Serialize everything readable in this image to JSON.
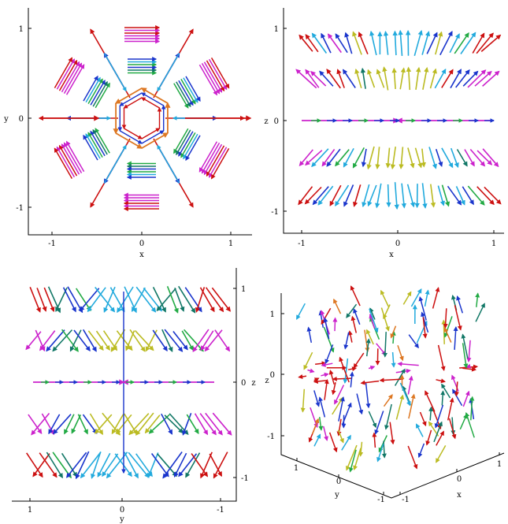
{
  "figure": {
    "panels": [
      {
        "id": "top-left",
        "view": "projection onto x-y plane",
        "xlabel": "x",
        "ylabel": "y",
        "xticks": [
          "-1",
          "0",
          "1"
        ],
        "yticks": [
          "1",
          "0",
          "-1"
        ]
      },
      {
        "id": "top-right",
        "view": "projection onto x-z plane",
        "xlabel": "x",
        "ylabel": "z",
        "xticks": [
          "-1",
          "0",
          "1"
        ],
        "yticks": [
          "1",
          "0",
          "-1"
        ]
      },
      {
        "id": "bottom-left",
        "view": "projection onto y-z plane (mirrored, z axis on right)",
        "xlabel": "y",
        "ylabel": "z",
        "xticks": [
          "1",
          "0",
          "-1"
        ],
        "yticks": [
          "1",
          "0",
          "-1"
        ]
      },
      {
        "id": "bottom-right",
        "view": "3D perspective",
        "xlabel": "x",
        "ylabel": "y",
        "zlabel": "z",
        "xticks": [
          "-1",
          "0",
          "1"
        ],
        "yticks": [
          "1",
          "0",
          "-1"
        ],
        "zticks": [
          "1",
          "0",
          "-1"
        ]
      }
    ],
    "arrow_colors": {
      "red": "#cc1010",
      "magenta": "#cc22cc",
      "blue": "#1a35cc",
      "cyan": "#22aadd",
      "green": "#22aa44",
      "teal": "#117766",
      "yellow": "#bbbb22",
      "orange": "#dd7722"
    },
    "axis_color": "#000000",
    "background": "#ffffff"
  }
}
